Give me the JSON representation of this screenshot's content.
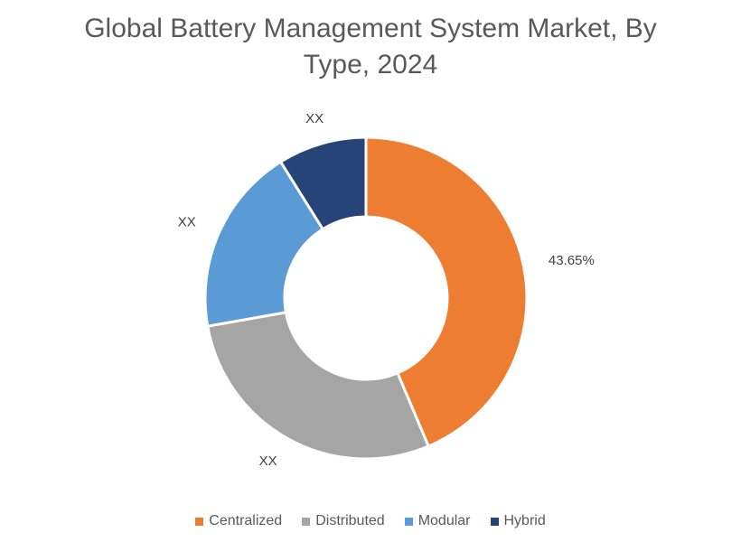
{
  "chart_data": {
    "type": "donut",
    "title": "Global Battery Management System Market, By Type, 2024",
    "categories": [
      "Centralized",
      "Distributed",
      "Modular",
      "Hybrid"
    ],
    "values": [
      43.65,
      28.55,
      18.9,
      8.9
    ],
    "value_labels": [
      "43.65%",
      "XX",
      "XX",
      "XX"
    ],
    "colors": [
      "#ed7d31",
      "#a5a5a5",
      "#5b9bd5",
      "#264478"
    ],
    "legend": "bottom"
  }
}
